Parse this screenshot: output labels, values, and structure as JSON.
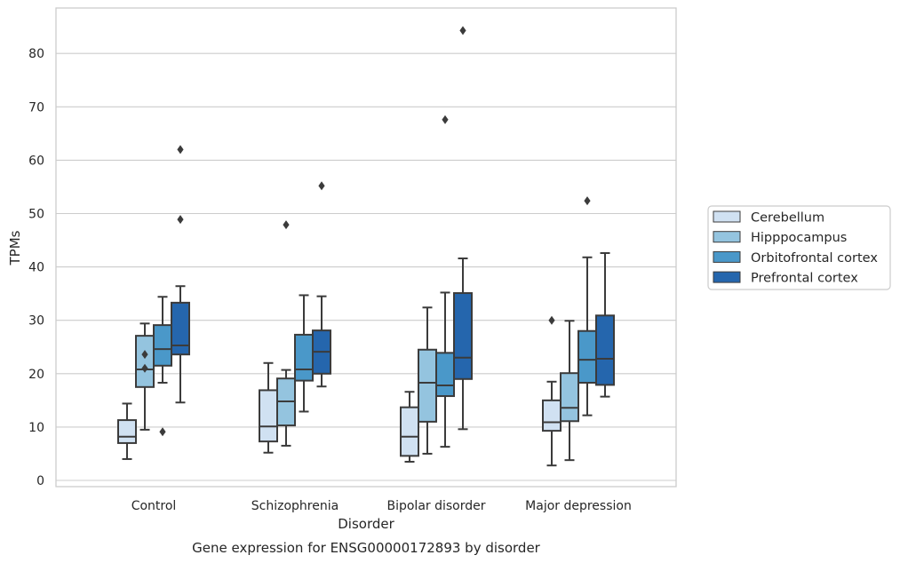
{
  "chart_data": {
    "type": "box",
    "title": "",
    "caption": "Gene expression for ENSG00000172893 by disorder",
    "xlabel": "Disorder",
    "ylabel": "TPMs",
    "ylim": [
      -1,
      89
    ],
    "yticks": [
      0,
      10,
      20,
      30,
      40,
      50,
      60,
      70,
      80
    ],
    "grid": "horizontal",
    "legend_position": "right",
    "categories": [
      "Control",
      "Schizophrenia",
      "Bipolar disorder",
      "Major depression"
    ],
    "series": [
      {
        "name": "Cerebellum",
        "color": "#d0e1f2",
        "boxes": [
          {
            "whisker_low": 4.0,
            "q1": 7.0,
            "median": 8.2,
            "q3": 11.3,
            "whisker_high": 14.4,
            "outliers": []
          },
          {
            "whisker_low": 5.2,
            "q1": 7.3,
            "median": 10.1,
            "q3": 16.9,
            "whisker_high": 22.0,
            "outliers": []
          },
          {
            "whisker_low": 3.5,
            "q1": 4.6,
            "median": 8.2,
            "q3": 13.7,
            "whisker_high": 16.6,
            "outliers": []
          },
          {
            "whisker_low": 2.8,
            "q1": 9.3,
            "median": 10.9,
            "q3": 15.0,
            "whisker_high": 18.5,
            "outliers": [
              30.0
            ]
          }
        ]
      },
      {
        "name": "Hipppocampus",
        "color": "#94c4df",
        "boxes": [
          {
            "whisker_low": 9.5,
            "q1": 17.5,
            "median": 20.8,
            "q3": 27.1,
            "whisker_high": 29.4,
            "outliers": [
              21.0,
              23.6
            ]
          },
          {
            "whisker_low": 6.5,
            "q1": 10.3,
            "median": 14.8,
            "q3": 19.1,
            "whisker_high": 20.7,
            "outliers": [
              47.9
            ]
          },
          {
            "whisker_low": 5.0,
            "q1": 11.0,
            "median": 18.3,
            "q3": 24.5,
            "whisker_high": 32.4,
            "outliers": []
          },
          {
            "whisker_low": 3.8,
            "q1": 11.1,
            "median": 13.6,
            "q3": 20.1,
            "whisker_high": 29.9,
            "outliers": []
          }
        ]
      },
      {
        "name": "Orbitofrontal cortex",
        "color": "#4a98c9",
        "boxes": [
          {
            "whisker_low": 18.3,
            "q1": 21.5,
            "median": 24.6,
            "q3": 29.1,
            "whisker_high": 34.4,
            "outliers": [
              9.1
            ]
          },
          {
            "whisker_low": 12.9,
            "q1": 18.7,
            "median": 20.8,
            "q3": 27.3,
            "whisker_high": 34.7,
            "outliers": []
          },
          {
            "whisker_low": 6.3,
            "q1": 15.8,
            "median": 17.8,
            "q3": 23.9,
            "whisker_high": 35.2,
            "outliers": [
              67.6
            ]
          },
          {
            "whisker_low": 12.2,
            "q1": 18.3,
            "median": 22.6,
            "q3": 28.0,
            "whisker_high": 41.8,
            "outliers": [
              52.4
            ]
          }
        ]
      },
      {
        "name": "Prefrontal cortex",
        "color": "#2566ad",
        "boxes": [
          {
            "whisker_low": 14.6,
            "q1": 23.6,
            "median": 25.3,
            "q3": 33.3,
            "whisker_high": 36.4,
            "outliers": [
              48.9,
              62.0
            ]
          },
          {
            "whisker_low": 17.6,
            "q1": 20.0,
            "median": 24.1,
            "q3": 28.1,
            "whisker_high": 34.5,
            "outliers": [
              55.2
            ]
          },
          {
            "whisker_low": 9.6,
            "q1": 19.0,
            "median": 23.0,
            "q3": 35.1,
            "whisker_high": 41.6,
            "outliers": [
              84.3
            ]
          },
          {
            "whisker_low": 15.7,
            "q1": 17.9,
            "median": 22.8,
            "q3": 30.9,
            "whisker_high": 42.6,
            "outliers": []
          }
        ]
      }
    ]
  }
}
